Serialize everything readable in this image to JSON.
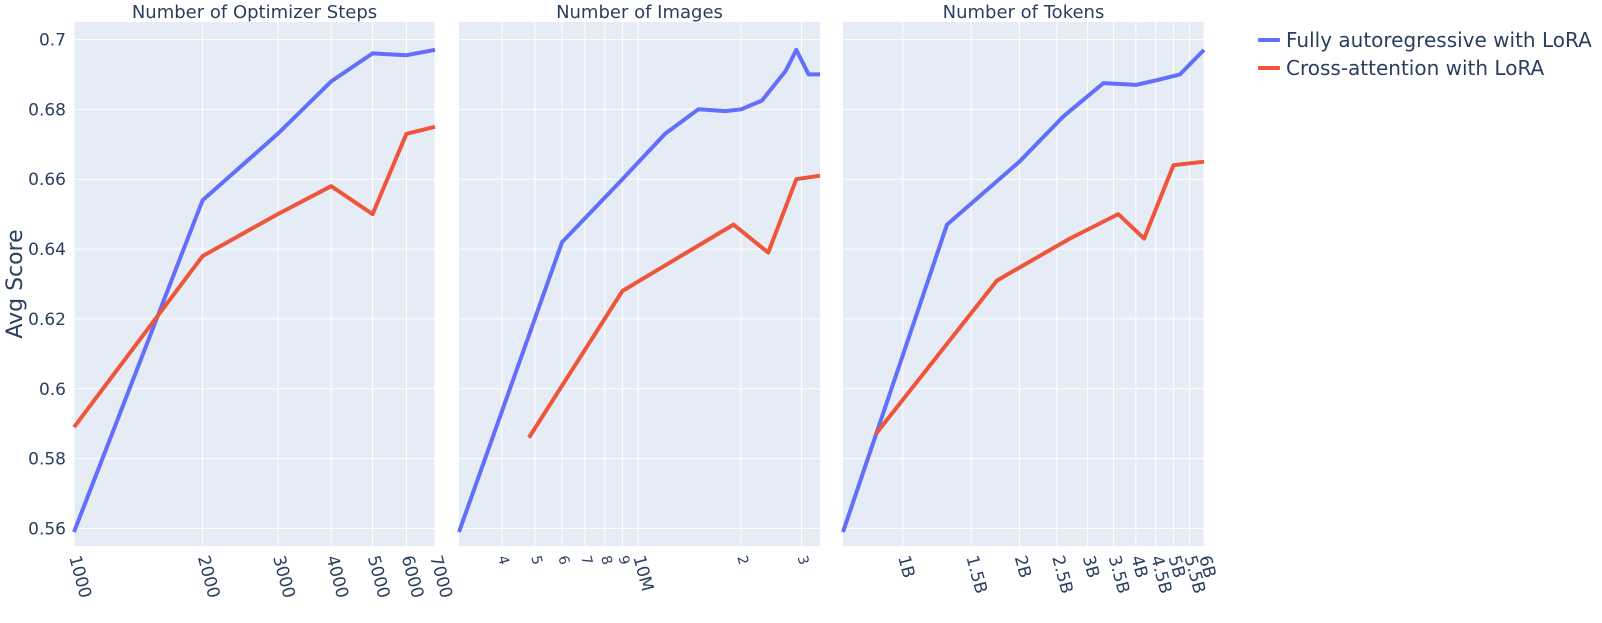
{
  "figure": {
    "ylabel": "Avg Score"
  },
  "legend": [
    {
      "name": "Fully autoregressive with LoRA",
      "color": "#636efa"
    },
    {
      "name": "Cross-attention with LoRA",
      "color": "#ef553b"
    }
  ],
  "chart_data": [
    {
      "type": "line",
      "title": "Number of Optimizer Steps",
      "xlabel": "",
      "ylabel": "Avg Score",
      "x_scale": "log",
      "xlim": [
        1000,
        7000
      ],
      "ylim": [
        0.555,
        0.705
      ],
      "x_ticks": [
        {
          "value": 1000,
          "label": "1000"
        },
        {
          "value": 2000,
          "label": "2000"
        },
        {
          "value": 3000,
          "label": "3000"
        },
        {
          "value": 4000,
          "label": "4000"
        },
        {
          "value": 5000,
          "label": "5000"
        },
        {
          "value": 6000,
          "label": "6000"
        },
        {
          "value": 7000,
          "label": "7000"
        }
      ],
      "y_ticks": [
        {
          "value": 0.56,
          "label": "0.56"
        },
        {
          "value": 0.58,
          "label": "0.58"
        },
        {
          "value": 0.6,
          "label": "0.6"
        },
        {
          "value": 0.62,
          "label": "0.62"
        },
        {
          "value": 0.64,
          "label": "0.64"
        },
        {
          "value": 0.66,
          "label": "0.66"
        },
        {
          "value": 0.68,
          "label": "0.68"
        },
        {
          "value": 0.7,
          "label": "0.7"
        }
      ],
      "grid": true,
      "series": [
        {
          "name": "Fully autoregressive with LoRA",
          "color": "#636efa",
          "x": [
            1000,
            2000,
            3000,
            4000,
            5000,
            6000,
            7000
          ],
          "y": [
            0.559,
            0.654,
            0.673,
            0.688,
            0.696,
            0.6955,
            0.697
          ]
        },
        {
          "name": "Cross-attention with LoRA",
          "color": "#ef553b",
          "x": [
            1000,
            2000,
            3000,
            4000,
            5000,
            6000,
            7000
          ],
          "y": [
            0.589,
            0.638,
            0.65,
            0.658,
            0.65,
            0.673,
            0.675
          ]
        }
      ]
    },
    {
      "type": "line",
      "title": "Number of Images",
      "xlabel": "",
      "x_scale": "log",
      "xlim": [
        3000000,
        34000000
      ],
      "ylim": [
        0.555,
        0.705
      ],
      "x_ticks": [
        {
          "value": 4000000,
          "label": "4",
          "small": true
        },
        {
          "value": 5000000,
          "label": "5",
          "small": true
        },
        {
          "value": 6000000,
          "label": "6",
          "small": true
        },
        {
          "value": 7000000,
          "label": "7",
          "small": true
        },
        {
          "value": 8000000,
          "label": "8",
          "small": true
        },
        {
          "value": 9000000,
          "label": "9",
          "small": true
        },
        {
          "value": 10000000,
          "label": "10M",
          "small": false
        },
        {
          "value": 20000000,
          "label": "2",
          "small": true
        },
        {
          "value": 30000000,
          "label": "3",
          "small": true
        }
      ],
      "grid": true,
      "series": [
        {
          "name": "Fully autoregressive with LoRA",
          "color": "#636efa",
          "x": [
            3000000,
            6000000,
            9000000,
            12000000,
            15000000,
            18000000,
            20000000,
            23000000,
            27000000,
            29000000,
            31500000,
            34000000
          ],
          "y": [
            0.559,
            0.642,
            0.66,
            0.673,
            0.68,
            0.6795,
            0.68,
            0.6825,
            0.691,
            0.697,
            0.69,
            0.69
          ]
        },
        {
          "name": "Cross-attention with LoRA",
          "color": "#ef553b",
          "x": [
            4800000,
            9000000,
            15000000,
            19000000,
            24000000,
            29000000,
            34000000
          ],
          "y": [
            0.586,
            0.628,
            0.641,
            0.647,
            0.639,
            0.66,
            0.661
          ]
        }
      ]
    },
    {
      "type": "line",
      "title": "Number of Tokens",
      "xlabel": "",
      "x_scale": "log",
      "xlim": [
        700000000,
        6000000000
      ],
      "ylim": [
        0.555,
        0.705
      ],
      "x_ticks": [
        {
          "value": 1000000000,
          "label": "1B"
        },
        {
          "value": 1500000000,
          "label": "1.5B"
        },
        {
          "value": 2000000000,
          "label": "2B"
        },
        {
          "value": 2500000000,
          "label": "2.5B"
        },
        {
          "value": 3000000000,
          "label": "3B"
        },
        {
          "value": 3500000000,
          "label": "3.5B"
        },
        {
          "value": 4000000000,
          "label": "4B"
        },
        {
          "value": 4500000000,
          "label": "4.5B"
        },
        {
          "value": 5000000000,
          "label": "5B"
        },
        {
          "value": 5500000000,
          "label": "5.5B"
        },
        {
          "value": 6000000000,
          "label": "6B"
        }
      ],
      "grid": true,
      "series": [
        {
          "name": "Fully autoregressive with LoRA",
          "color": "#636efa",
          "x": [
            700000000,
            1300000000,
            2000000000,
            2600000000,
            3300000000,
            4000000000,
            4600000000,
            5200000000,
            6000000000
          ],
          "y": [
            0.559,
            0.647,
            0.665,
            0.678,
            0.6875,
            0.687,
            0.6885,
            0.69,
            0.697
          ]
        },
        {
          "name": "Cross-attention with LoRA",
          "color": "#ef553b",
          "x": [
            850000000,
            1750000000,
            2700000000,
            3600000000,
            4200000000,
            5000000000,
            6000000000
          ],
          "y": [
            0.587,
            0.631,
            0.643,
            0.65,
            0.643,
            0.664,
            0.665
          ]
        }
      ]
    }
  ]
}
